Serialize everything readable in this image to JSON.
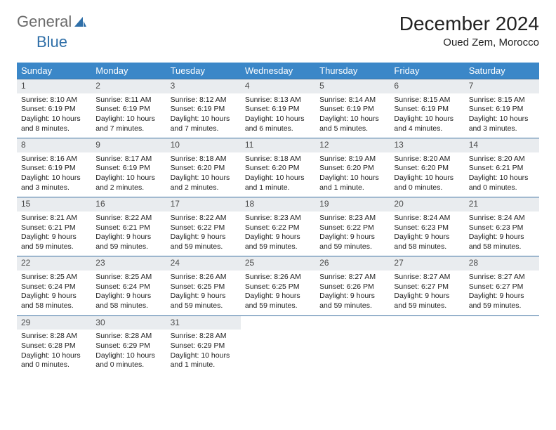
{
  "brand": {
    "part1": "General",
    "part2": "Blue"
  },
  "title": "December 2024",
  "location": "Oued Zem, Morocco",
  "colors": {
    "header_bg": "#3b87c8",
    "header_text": "#ffffff",
    "daynum_bg": "#e9ecef",
    "rule": "#3b6fa0",
    "logo_gray": "#6b6b6b",
    "logo_blue": "#2f6fa8"
  },
  "day_names": [
    "Sunday",
    "Monday",
    "Tuesday",
    "Wednesday",
    "Thursday",
    "Friday",
    "Saturday"
  ],
  "weeks": [
    [
      {
        "n": "1",
        "sr": "Sunrise: 8:10 AM",
        "ss": "Sunset: 6:19 PM",
        "dl1": "Daylight: 10 hours",
        "dl2": "and 8 minutes."
      },
      {
        "n": "2",
        "sr": "Sunrise: 8:11 AM",
        "ss": "Sunset: 6:19 PM",
        "dl1": "Daylight: 10 hours",
        "dl2": "and 7 minutes."
      },
      {
        "n": "3",
        "sr": "Sunrise: 8:12 AM",
        "ss": "Sunset: 6:19 PM",
        "dl1": "Daylight: 10 hours",
        "dl2": "and 7 minutes."
      },
      {
        "n": "4",
        "sr": "Sunrise: 8:13 AM",
        "ss": "Sunset: 6:19 PM",
        "dl1": "Daylight: 10 hours",
        "dl2": "and 6 minutes."
      },
      {
        "n": "5",
        "sr": "Sunrise: 8:14 AM",
        "ss": "Sunset: 6:19 PM",
        "dl1": "Daylight: 10 hours",
        "dl2": "and 5 minutes."
      },
      {
        "n": "6",
        "sr": "Sunrise: 8:15 AM",
        "ss": "Sunset: 6:19 PM",
        "dl1": "Daylight: 10 hours",
        "dl2": "and 4 minutes."
      },
      {
        "n": "7",
        "sr": "Sunrise: 8:15 AM",
        "ss": "Sunset: 6:19 PM",
        "dl1": "Daylight: 10 hours",
        "dl2": "and 3 minutes."
      }
    ],
    [
      {
        "n": "8",
        "sr": "Sunrise: 8:16 AM",
        "ss": "Sunset: 6:19 PM",
        "dl1": "Daylight: 10 hours",
        "dl2": "and 3 minutes."
      },
      {
        "n": "9",
        "sr": "Sunrise: 8:17 AM",
        "ss": "Sunset: 6:19 PM",
        "dl1": "Daylight: 10 hours",
        "dl2": "and 2 minutes."
      },
      {
        "n": "10",
        "sr": "Sunrise: 8:18 AM",
        "ss": "Sunset: 6:20 PM",
        "dl1": "Daylight: 10 hours",
        "dl2": "and 2 minutes."
      },
      {
        "n": "11",
        "sr": "Sunrise: 8:18 AM",
        "ss": "Sunset: 6:20 PM",
        "dl1": "Daylight: 10 hours",
        "dl2": "and 1 minute."
      },
      {
        "n": "12",
        "sr": "Sunrise: 8:19 AM",
        "ss": "Sunset: 6:20 PM",
        "dl1": "Daylight: 10 hours",
        "dl2": "and 1 minute."
      },
      {
        "n": "13",
        "sr": "Sunrise: 8:20 AM",
        "ss": "Sunset: 6:20 PM",
        "dl1": "Daylight: 10 hours",
        "dl2": "and 0 minutes."
      },
      {
        "n": "14",
        "sr": "Sunrise: 8:20 AM",
        "ss": "Sunset: 6:21 PM",
        "dl1": "Daylight: 10 hours",
        "dl2": "and 0 minutes."
      }
    ],
    [
      {
        "n": "15",
        "sr": "Sunrise: 8:21 AM",
        "ss": "Sunset: 6:21 PM",
        "dl1": "Daylight: 9 hours",
        "dl2": "and 59 minutes."
      },
      {
        "n": "16",
        "sr": "Sunrise: 8:22 AM",
        "ss": "Sunset: 6:21 PM",
        "dl1": "Daylight: 9 hours",
        "dl2": "and 59 minutes."
      },
      {
        "n": "17",
        "sr": "Sunrise: 8:22 AM",
        "ss": "Sunset: 6:22 PM",
        "dl1": "Daylight: 9 hours",
        "dl2": "and 59 minutes."
      },
      {
        "n": "18",
        "sr": "Sunrise: 8:23 AM",
        "ss": "Sunset: 6:22 PM",
        "dl1": "Daylight: 9 hours",
        "dl2": "and 59 minutes."
      },
      {
        "n": "19",
        "sr": "Sunrise: 8:23 AM",
        "ss": "Sunset: 6:22 PM",
        "dl1": "Daylight: 9 hours",
        "dl2": "and 59 minutes."
      },
      {
        "n": "20",
        "sr": "Sunrise: 8:24 AM",
        "ss": "Sunset: 6:23 PM",
        "dl1": "Daylight: 9 hours",
        "dl2": "and 58 minutes."
      },
      {
        "n": "21",
        "sr": "Sunrise: 8:24 AM",
        "ss": "Sunset: 6:23 PM",
        "dl1": "Daylight: 9 hours",
        "dl2": "and 58 minutes."
      }
    ],
    [
      {
        "n": "22",
        "sr": "Sunrise: 8:25 AM",
        "ss": "Sunset: 6:24 PM",
        "dl1": "Daylight: 9 hours",
        "dl2": "and 58 minutes."
      },
      {
        "n": "23",
        "sr": "Sunrise: 8:25 AM",
        "ss": "Sunset: 6:24 PM",
        "dl1": "Daylight: 9 hours",
        "dl2": "and 58 minutes."
      },
      {
        "n": "24",
        "sr": "Sunrise: 8:26 AM",
        "ss": "Sunset: 6:25 PM",
        "dl1": "Daylight: 9 hours",
        "dl2": "and 59 minutes."
      },
      {
        "n": "25",
        "sr": "Sunrise: 8:26 AM",
        "ss": "Sunset: 6:25 PM",
        "dl1": "Daylight: 9 hours",
        "dl2": "and 59 minutes."
      },
      {
        "n": "26",
        "sr": "Sunrise: 8:27 AM",
        "ss": "Sunset: 6:26 PM",
        "dl1": "Daylight: 9 hours",
        "dl2": "and 59 minutes."
      },
      {
        "n": "27",
        "sr": "Sunrise: 8:27 AM",
        "ss": "Sunset: 6:27 PM",
        "dl1": "Daylight: 9 hours",
        "dl2": "and 59 minutes."
      },
      {
        "n": "28",
        "sr": "Sunrise: 8:27 AM",
        "ss": "Sunset: 6:27 PM",
        "dl1": "Daylight: 9 hours",
        "dl2": "and 59 minutes."
      }
    ],
    [
      {
        "n": "29",
        "sr": "Sunrise: 8:28 AM",
        "ss": "Sunset: 6:28 PM",
        "dl1": "Daylight: 10 hours",
        "dl2": "and 0 minutes."
      },
      {
        "n": "30",
        "sr": "Sunrise: 8:28 AM",
        "ss": "Sunset: 6:29 PM",
        "dl1": "Daylight: 10 hours",
        "dl2": "and 0 minutes."
      },
      {
        "n": "31",
        "sr": "Sunrise: 8:28 AM",
        "ss": "Sunset: 6:29 PM",
        "dl1": "Daylight: 10 hours",
        "dl2": "and 1 minute."
      },
      {
        "empty": true,
        "n": ""
      },
      {
        "empty": true,
        "n": ""
      },
      {
        "empty": true,
        "n": ""
      },
      {
        "empty": true,
        "n": ""
      }
    ]
  ]
}
